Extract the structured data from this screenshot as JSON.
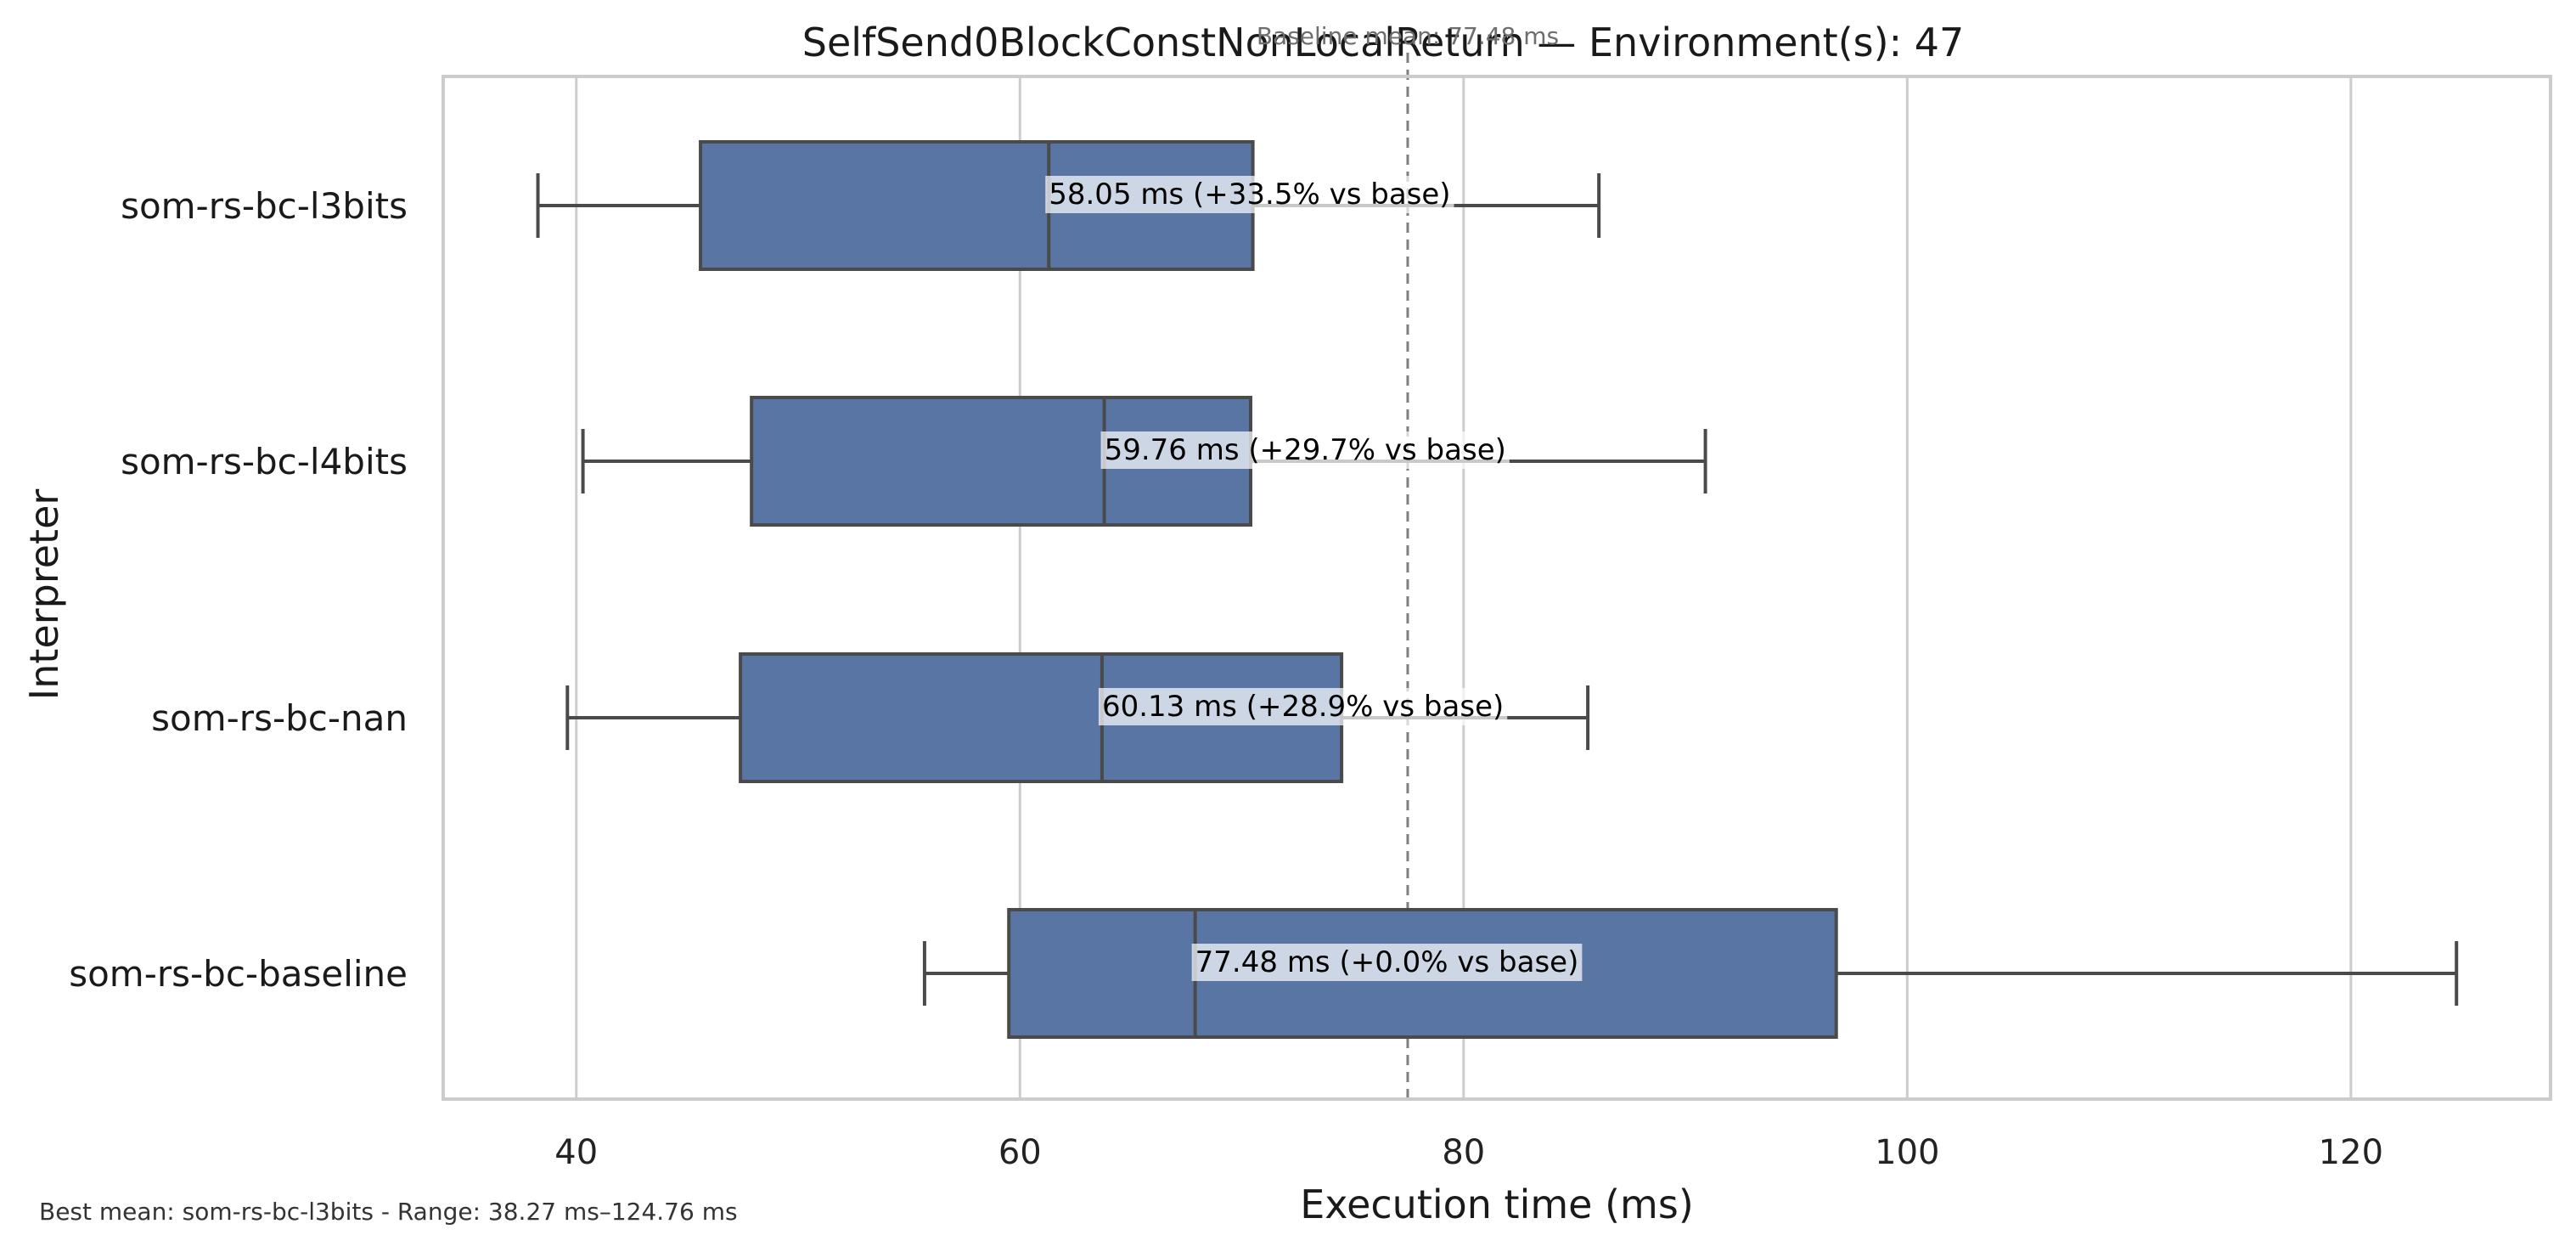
{
  "chart_data": {
    "type": "boxplot",
    "orientation": "horizontal",
    "title": "SelfSend0BlockConstNonLocalReturn — Environment(s): 47",
    "baseline_note": "Baseline mean: 77.48 ms",
    "xlabel": "Execution time (ms)",
    "ylabel": "Interpreter",
    "xlim": [
      34,
      129
    ],
    "x_ticks": [
      40,
      60,
      80,
      100,
      120
    ],
    "grid": "vertical",
    "baseline_mean": 77.48,
    "box_color": "#5975a4",
    "edge_color": "#4a4a4a",
    "baseline_line_color": "#7f7f7f",
    "categories": [
      "som-rs-bc-l3bits",
      "som-rs-bc-l4bits",
      "som-rs-bc-nan",
      "som-rs-bc-baseline"
    ],
    "boxes": [
      {
        "name": "som-rs-bc-l3bits",
        "whisker_low": 38.27,
        "q1": 45.6,
        "median": 61.3,
        "q3": 70.5,
        "whisker_high": 86.1,
        "mean_label": "58.05 ms  (+33.5% vs base)"
      },
      {
        "name": "som-rs-bc-l4bits",
        "whisker_low": 40.3,
        "q1": 47.9,
        "median": 63.8,
        "q3": 70.4,
        "whisker_high": 90.9,
        "mean_label": "59.76 ms  (+29.7% vs base)"
      },
      {
        "name": "som-rs-bc-nan",
        "whisker_low": 39.6,
        "q1": 47.4,
        "median": 63.7,
        "q3": 74.5,
        "whisker_high": 85.6,
        "mean_label": "60.13 ms  (+28.9% vs base)"
      },
      {
        "name": "som-rs-bc-baseline",
        "whisker_low": 55.7,
        "q1": 59.5,
        "median": 67.9,
        "q3": 96.8,
        "whisker_high": 124.76,
        "mean_label": "77.48 ms  (+0.0% vs base)"
      }
    ],
    "footer": "Best mean: som-rs-bc-l3bits - Range: 38.27 ms–124.76 ms"
  }
}
